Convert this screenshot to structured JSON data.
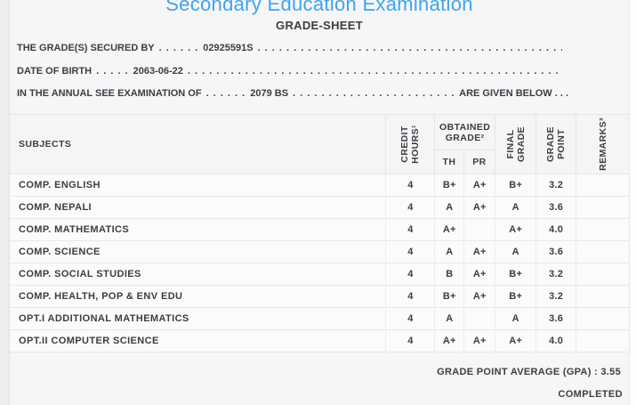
{
  "page": {
    "title": "Secondary Education Examination",
    "subtitle": "GRADE-SHEET"
  },
  "info": {
    "line1": {
      "label": "THE GRADE(S) SECURED BY",
      "dots": ". . . . . .",
      "value": "02925591S",
      "trail": ". . . . . . . . . . . . . . . . . . . . . . . . . . . . . . . . . . . . . . . . . . . . . . . . . . . . . . . . . . . . . . . . . . . . . . . ."
    },
    "line2": {
      "label": "DATE OF BIRTH",
      "dots": ". . . . .",
      "value": "2063-06-22",
      "trail": ". . . . . . . . . . . . . . . . . . . . . . . . . . . . . . . . . . . . . . . . . . . . . . . . . . . . . . . . . . . . . . . . . . . . . . . ."
    },
    "line3": {
      "label": "IN THE ANNUAL SEE EXAMINATION OF",
      "dots": ". . . . . .",
      "value": "2079 BS",
      "trail": ". . . . . . . . . . . . . . . . . . . . . . . . . . . . . . . . . . . . . . . . . . . . . . . . . . . . . . . . . . . . . . . . . . . . . . . .",
      "suffix": "ARE GIVEN BELOW . . ."
    }
  },
  "table": {
    "headers": {
      "subjects": "SUBJECTS",
      "credit_l1": "CREDIT",
      "credit_l2": "HOURS¹",
      "obtained_l1": "OBTAINED",
      "obtained_l2": "GRADE²",
      "th": "TH",
      "pr": "PR",
      "final_l1": "FINAL",
      "final_l2": "GRADE",
      "gp_l1": "GRADE",
      "gp_l2": "POINT",
      "remarks": "REMARKS³"
    },
    "rows": [
      {
        "subject": "COMP. ENGLISH",
        "credit": "4",
        "th": "B+",
        "pr": "A+",
        "final": "B+",
        "gp": "3.2",
        "remarks": ""
      },
      {
        "subject": "COMP. NEPALI",
        "credit": "4",
        "th": "A",
        "pr": "A+",
        "final": "A",
        "gp": "3.6",
        "remarks": ""
      },
      {
        "subject": "COMP. MATHEMATICS",
        "credit": "4",
        "th": "A+",
        "pr": "",
        "final": "A+",
        "gp": "4.0",
        "remarks": ""
      },
      {
        "subject": "COMP. SCIENCE",
        "credit": "4",
        "th": "A",
        "pr": "A+",
        "final": "A",
        "gp": "3.6",
        "remarks": ""
      },
      {
        "subject": "COMP. SOCIAL STUDIES",
        "credit": "4",
        "th": "B",
        "pr": "A+",
        "final": "B+",
        "gp": "3.2",
        "remarks": ""
      },
      {
        "subject": "COMP. HEALTH, POP & ENV EDU",
        "credit": "4",
        "th": "B+",
        "pr": "A+",
        "final": "B+",
        "gp": "3.2",
        "remarks": ""
      },
      {
        "subject": "OPT.I ADDITIONAL MATHEMATICS",
        "credit": "4",
        "th": "A",
        "pr": "",
        "final": "A",
        "gp": "3.6",
        "remarks": ""
      },
      {
        "subject": "OPT.II COMPUTER SCIENCE",
        "credit": "4",
        "th": "A+",
        "pr": "A+",
        "final": "A+",
        "gp": "4.0",
        "remarks": ""
      }
    ]
  },
  "footer": {
    "gpa_label": "GRADE POINT AVERAGE (GPA) :",
    "gpa_value": "3.55",
    "status": "COMPLETED"
  },
  "colors": {
    "title_blue": "#3EA4EE",
    "text_dark": "#3D3D40",
    "page_bg": "#F6F6F8",
    "border": "#E5E5E8"
  }
}
